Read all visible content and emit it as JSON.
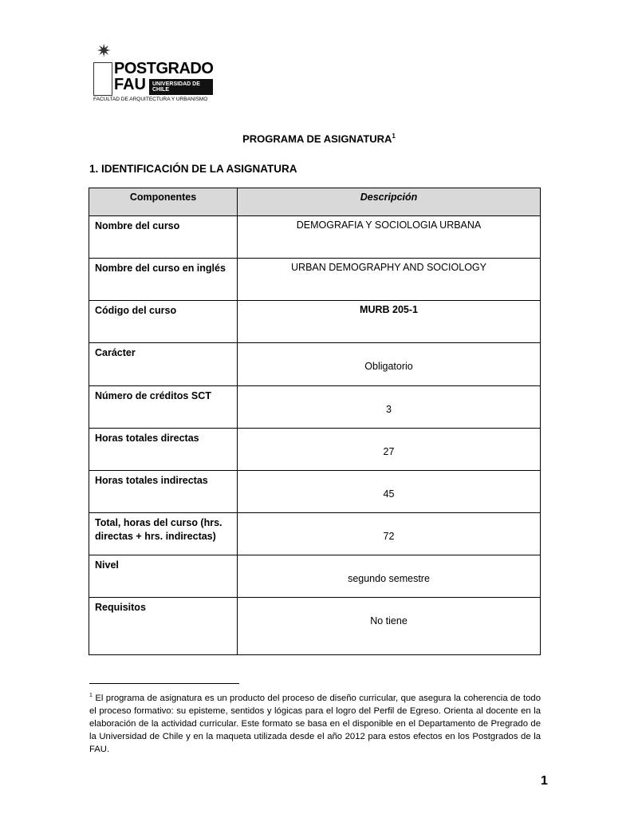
{
  "logo": {
    "star": "✷",
    "line1": "POSTGRADO",
    "line2": "FAU",
    "badge": "UNIVERSIDAD DE CHILE",
    "subtitle": "FACULTAD DE ARQUITECTURA Y URBANISMO"
  },
  "title": "PROGRAMA DE ASIGNATURA",
  "title_ref": "1",
  "section": "1. IDENTIFICACIÓN DE LA ASIGNATURA",
  "table": {
    "headers": [
      "Componentes",
      "Descripción"
    ],
    "rows": [
      {
        "label": "Nombre del curso",
        "value": "DEMOGRAFIA Y SOCIOLOGIA URBANA"
      },
      {
        "label": "Nombre del curso en inglés",
        "value": "URBAN DEMOGRAPHY AND SOCIOLOGY"
      },
      {
        "label": "Código del curso",
        "value": "MURB 205-1"
      },
      {
        "label": "Carácter",
        "value": "Obligatorio"
      },
      {
        "label": "Número de créditos SCT",
        "value": "3"
      },
      {
        "label": "Horas totales directas",
        "value": "27"
      },
      {
        "label": "Horas totales indirectas",
        "value": "45"
      },
      {
        "label": "Total, horas del curso (hrs. directas + hrs. indirectas)",
        "value": "72"
      },
      {
        "label": "Nivel",
        "value": "segundo  semestre"
      },
      {
        "label": "Requisitos",
        "value": "No tiene"
      }
    ]
  },
  "footnote": {
    "ref": "1",
    "text": " El programa de asignatura es un producto del proceso de diseño curricular, que asegura la coherencia de todo el proceso formativo: su episteme, sentidos y lógicas para el logro del Perfil de Egreso. Orienta al docente en la elaboración de la actividad curricular. Este formato se basa en el disponible en el Departamento de Pregrado de la Universidad de Chile y en la maqueta utilizada desde el año 2012 para estos efectos en los Postgrados de la FAU."
  },
  "page_number": "1"
}
